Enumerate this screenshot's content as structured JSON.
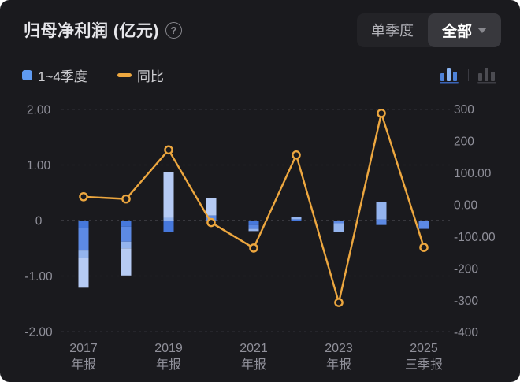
{
  "header": {
    "title": "归母净利润 (亿元)",
    "help_glyph": "?"
  },
  "period_control": {
    "options": [
      {
        "label": "单季度",
        "selected": false
      },
      {
        "label": "全部",
        "selected": true
      }
    ]
  },
  "legend": {
    "items": [
      {
        "label": "1~4季度",
        "swatch": "blue-square"
      },
      {
        "label": "同比",
        "swatch": "orange-dash"
      }
    ]
  },
  "view_toggle": {
    "icons": [
      {
        "name": "stacked-bar-chart",
        "active": true
      },
      {
        "name": "grouped-bar-chart",
        "active": false
      }
    ]
  },
  "colors": {
    "bg": "#1a1a1e",
    "panel": "#232327",
    "panel_selected": "#38383d",
    "title": "#e6e6ea",
    "muted": "#87878d",
    "muted2": "#b2b2b8",
    "legend_text": "#cfcfd3",
    "legend_blue": "#5f9bf2",
    "axis_text": "#90909a",
    "grid": "#2f2f36",
    "grid_zero": "#4a4a52",
    "line": "#eda73f",
    "icon_inactive": "#4c4c52",
    "icon_blue_1": "#4e82d8",
    "icon_blue_2": "#8ab4f2",
    "bar_shades": {
      "dark": "#4678dc",
      "medium": "#5d8ae4",
      "light": "#94b4ee",
      "lightest": "#b6cbf4"
    }
  },
  "chart_data": {
    "type": "bar",
    "subtype": "stacked-quarter-bars-with-yoy-line-dual-axis",
    "title": "归母净利润 (亿元)",
    "bar_series_name": "1~4季度",
    "line_series_name": "同比",
    "categories": [
      "2017",
      "2018",
      "2019",
      "2020",
      "2021",
      "2022",
      "2023",
      "2024",
      "2025"
    ],
    "x_tick_labels": [
      {
        "index": 0,
        "line1": "2017",
        "line2": "年报"
      },
      {
        "index": 2,
        "line1": "2019",
        "line2": "年报"
      },
      {
        "index": 4,
        "line1": "2021",
        "line2": "年报"
      },
      {
        "index": 6,
        "line1": "2023",
        "line2": "年报"
      },
      {
        "index": 8,
        "line1": "2025",
        "line2": "三季报"
      }
    ],
    "bars": [
      {
        "category": "2017",
        "total": -1.21,
        "segments": [
          {
            "from": 0,
            "to": -0.14,
            "shade": "dark"
          },
          {
            "from": -0.14,
            "to": -0.54,
            "shade": "medium"
          },
          {
            "from": -0.54,
            "to": -0.68,
            "shade": "light"
          },
          {
            "from": -0.68,
            "to": -1.21,
            "shade": "lightest"
          }
        ]
      },
      {
        "category": "2018",
        "total": -0.99,
        "segments": [
          {
            "from": 0,
            "to": -0.11,
            "shade": "dark"
          },
          {
            "from": -0.11,
            "to": -0.38,
            "shade": "medium"
          },
          {
            "from": -0.38,
            "to": -0.5,
            "shade": "light"
          },
          {
            "from": -0.5,
            "to": -0.99,
            "shade": "lightest"
          }
        ]
      },
      {
        "category": "2019",
        "total": 0.66,
        "segments": [
          {
            "from": 0.87,
            "to": 0.05,
            "shade": "lightest"
          },
          {
            "from": 0.05,
            "to": 0,
            "shade": "light"
          },
          {
            "from": 0,
            "to": -0.21,
            "shade": "dark"
          }
        ]
      },
      {
        "category": "2020",
        "total": 0.4,
        "segments": [
          {
            "from": 0.4,
            "to": 0.09,
            "shade": "lightest"
          },
          {
            "from": 0.09,
            "to": 0,
            "shade": "medium"
          }
        ]
      },
      {
        "category": "2021",
        "total": -0.19,
        "segments": [
          {
            "from": 0,
            "to": -0.08,
            "shade": "dark"
          },
          {
            "from": -0.08,
            "to": -0.15,
            "shade": "medium"
          },
          {
            "from": -0.15,
            "to": -0.19,
            "shade": "light"
          }
        ]
      },
      {
        "category": "2022",
        "total": 0.07,
        "segments": [
          {
            "from": 0.07,
            "to": 0.02,
            "shade": "light"
          },
          {
            "from": 0.02,
            "to": -0.01,
            "shade": "dark"
          }
        ]
      },
      {
        "category": "2023",
        "total": -0.21,
        "segments": [
          {
            "from": 0,
            "to": -0.05,
            "shade": "medium"
          },
          {
            "from": -0.05,
            "to": -0.21,
            "shade": "light"
          }
        ]
      },
      {
        "category": "2024",
        "total": 0.25,
        "segments": [
          {
            "from": 0.33,
            "to": 0.02,
            "shade": "light"
          },
          {
            "from": 0.02,
            "to": -0.08,
            "shade": "medium"
          }
        ]
      },
      {
        "category": "2025",
        "total": -0.15,
        "segments": [
          {
            "from": 0,
            "to": -0.15,
            "shade": "medium"
          }
        ]
      }
    ],
    "line_yoy_percent": [
      25,
      18,
      172,
      -56,
      -136,
      156,
      -307,
      287,
      -134
    ],
    "left_axis": {
      "tick_labels": [
        "2.00",
        "1.00",
        "0",
        "-1.00",
        "-2.00"
      ],
      "tick_values": [
        2,
        1,
        0,
        -1,
        -2
      ],
      "min": -2,
      "max": 2
    },
    "right_axis": {
      "tick_labels": [
        "300",
        "200",
        "100.00",
        "0.00",
        "-100.00",
        "-200",
        "-300",
        "-400"
      ],
      "tick_values": [
        300,
        200,
        100,
        0,
        -100,
        -200,
        -300,
        -400
      ],
      "min": -400,
      "max": 300
    },
    "grid": "dashed horizontal lines at left-axis ticks",
    "legend_position": "top-left"
  }
}
